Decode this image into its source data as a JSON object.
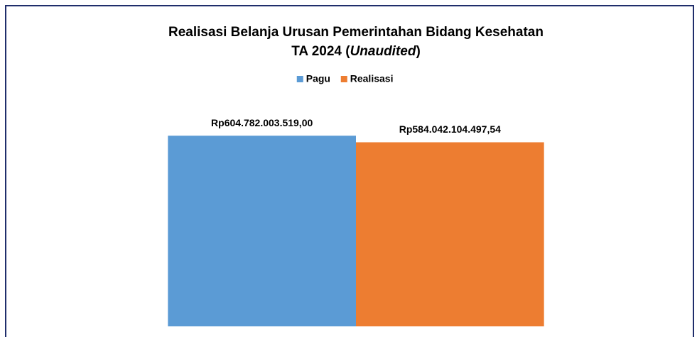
{
  "chart_data": {
    "type": "bar",
    "title": [
      "Realisasi Belanja Urusan Pemerintahan Bidang Kesehatan",
      "TA 2024 (",
      "Unaudited",
      ")"
    ],
    "categories": [
      null
    ],
    "series": [
      {
        "name": "Pagu",
        "color": "#5b9bd5",
        "values": [
          604782003519.0
        ],
        "value_labels": [
          "Rp604.782.003.519,00"
        ]
      },
      {
        "name": "Realisasi",
        "color": "#ed7d31",
        "values": [
          584042104497.54
        ],
        "value_labels": [
          "Rp584.042.104.497,54"
        ]
      }
    ],
    "ylim": [
      0,
      700000000000
    ],
    "legend": "top"
  }
}
